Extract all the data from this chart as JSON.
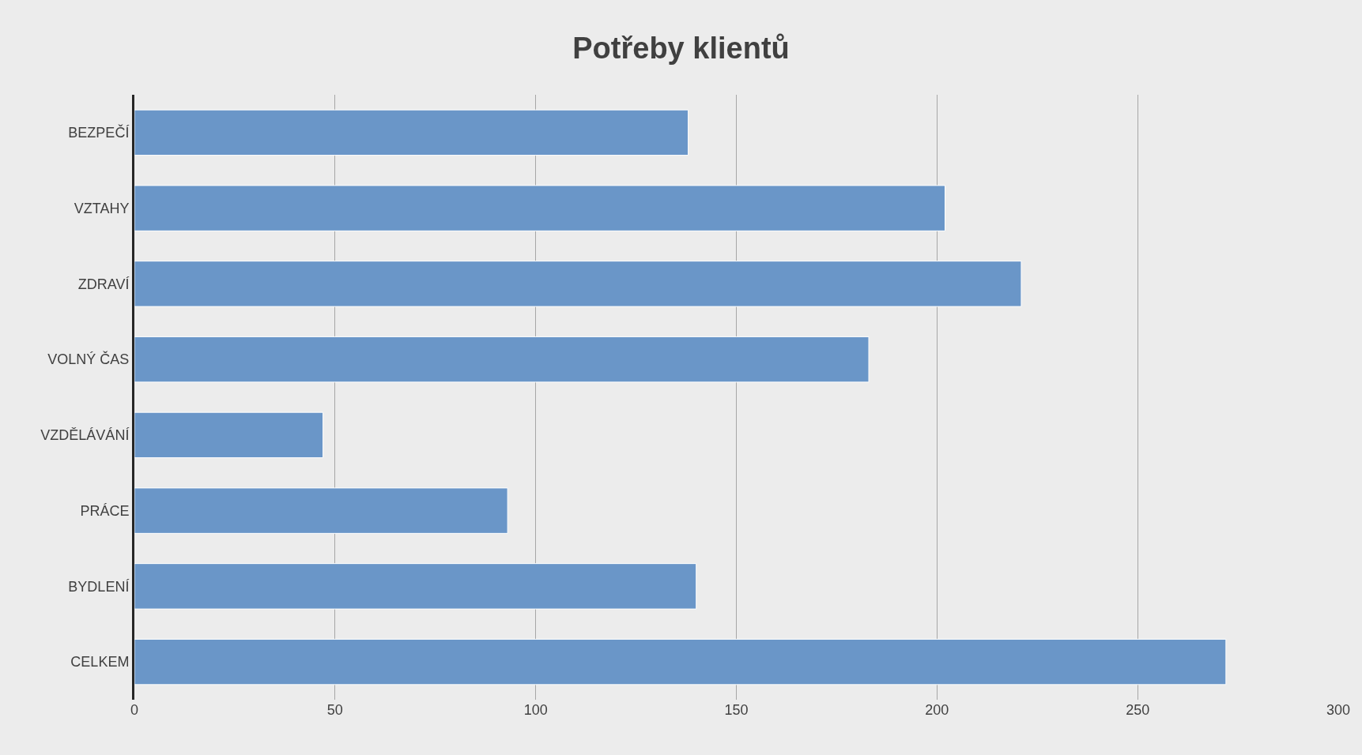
{
  "chart_data": {
    "type": "bar",
    "orientation": "horizontal",
    "title": "Potřeby klientů",
    "categories": [
      "BEZPEČÍ",
      "VZTAHY",
      "ZDRAVÍ",
      "VOLNÝ ČAS",
      "VZDĚLÁVÁNÍ",
      "PRÁCE",
      "BYDLENÍ",
      "CELKEM"
    ],
    "values": [
      138,
      202,
      221,
      183,
      47,
      93,
      140,
      272
    ],
    "color": "#6a96c8",
    "xlim": [
      0,
      300
    ],
    "xticks": [
      0,
      50,
      100,
      150,
      200,
      250,
      300
    ],
    "grid": "x"
  }
}
